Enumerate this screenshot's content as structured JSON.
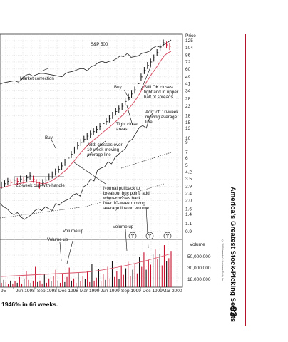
{
  "chart_labels": {
    "price_header": "Price",
    "sp500": "S&P 500",
    "market_correction": "Market correction",
    "buy_1": "Buy",
    "buy_2": "Buy",
    "still_ok": "Still OK closes\ntight and in upper\nhalf of spreads",
    "add_off": "Add: off 10-week\nmoving average\nline",
    "tight_close": "Tight close\nareas",
    "add_crosses": "Add: crosses over\n10-week moving\naverage line",
    "cup_handle": "22-week cup-with-handle",
    "pullback": "Normal pullback to\nbreakout buy point, add\nwhen crosses back\nover 10-week moving\naverage line on volume",
    "volume_up_1": "Volume up",
    "volume_up_2": "Volume up",
    "volume_up_3": "Volume up",
    "volume_header": "Volume"
  },
  "colors": {
    "price_bars": "#111111",
    "up_volume": "#c8102e",
    "down_volume": "#111111",
    "moving_average": "#d9546a",
    "grid": "#c8c8c8",
    "accent_rule": "#b5122b"
  },
  "chart_data": {
    "type": "line",
    "price_axis_ticks": [
      "125",
      "104",
      "86",
      "72",
      "60",
      "49",
      "41",
      "34",
      "28",
      "23",
      "18",
      "15",
      "13",
      "10",
      "9",
      "7",
      "6",
      "5",
      "4.2",
      "3.5",
      "2.9",
      "2.4",
      "2.0",
      "1.6",
      "1.4",
      "1.1",
      "0.9"
    ],
    "volume_axis_ticks": [
      "50,000,000",
      "30,000,000",
      "18,000,000"
    ],
    "x_ticks": [
      "95",
      "Jun 1998",
      "Sep 1998",
      "Dec 1998",
      "Mar 1999",
      "Jun 1999",
      "Sep 1999",
      "Dec 1999",
      "Mar 2000"
    ],
    "price_series": [
      3.0,
      3.1,
      3.3,
      3.2,
      3.4,
      3.3,
      3.5,
      3.4,
      3.6,
      3.8,
      3.5,
      3.2,
      3.0,
      3.2,
      3.4,
      3.7,
      3.9,
      4.2,
      4.5,
      4.9,
      5.4,
      6.0,
      6.6,
      7.4,
      8.3,
      9.0,
      9.8,
      10.6,
      11.2,
      11.9,
      12.6,
      13.6,
      14.6,
      15.4,
      16.6,
      18.2,
      20.0,
      21.4,
      23.0,
      26.0,
      29.0,
      31.5,
      35.0,
      41.0,
      49.0,
      58.0,
      66.0,
      72.0,
      80.0,
      92.0,
      104.0,
      118.0,
      112.0,
      108.0
    ],
    "moving_average_series": [
      3.0,
      3.05,
      3.1,
      3.2,
      3.25,
      3.3,
      3.35,
      3.4,
      3.45,
      3.5,
      3.55,
      3.5,
      3.4,
      3.35,
      3.35,
      3.45,
      3.6,
      3.8,
      4.0,
      4.3,
      4.6,
      5.0,
      5.5,
      6.0,
      6.7,
      7.4,
      8.1,
      8.9,
      9.6,
      10.3,
      11.0,
      11.8,
      12.7,
      13.6,
      14.5,
      15.6,
      16.8,
      18.2,
      19.6,
      21.5,
      23.5,
      26.0,
      29.0,
      33.0,
      38.0,
      44.0,
      50.0,
      57.0,
      64.0,
      72.0,
      82.0,
      92.0,
      98.0,
      102.0
    ],
    "sp500_series": [
      50,
      52,
      53,
      54,
      55,
      53,
      57,
      63,
      65,
      62,
      64,
      66,
      66,
      65,
      64,
      63,
      62,
      61,
      66,
      68,
      69,
      71,
      73,
      73,
      70,
      76,
      78,
      82,
      84,
      82,
      84,
      85,
      88,
      92,
      91,
      96,
      90,
      91,
      92,
      96,
      97,
      99,
      104,
      107,
      105,
      109,
      112,
      116
    ],
    "relative_strength_series": [
      2.3,
      2.1,
      2.0,
      1.8,
      1.7,
      1.8,
      1.6,
      1.5,
      1.6,
      1.7,
      1.9,
      2.0,
      1.9,
      2.1,
      2.0,
      1.9,
      2.3,
      2.2,
      2.4,
      2.5,
      2.6,
      2.9,
      3.0,
      2.8,
      3.6,
      3.8,
      4.4,
      4.2,
      5.6,
      5.9,
      6.1,
      7.0,
      6.6,
      7.8,
      8.5,
      9.2,
      9.9,
      12.0,
      12.8,
      15.0,
      17.5,
      18.4,
      17.2,
      23.0,
      26.0
    ],
    "volume_series": [
      6,
      10,
      7,
      4,
      9,
      5,
      8,
      6,
      14,
      5,
      12,
      22,
      10,
      6,
      9,
      28,
      7,
      9,
      5,
      18,
      6,
      12,
      8,
      15,
      24,
      9,
      6,
      19,
      7,
      14,
      27,
      9,
      12,
      6,
      20,
      8,
      15,
      11,
      22,
      7,
      32,
      9,
      13,
      25,
      8,
      18,
      10,
      28,
      12,
      36,
      14,
      22,
      11,
      30,
      17,
      26,
      35,
      15,
      24,
      32,
      19,
      42,
      28,
      48,
      24,
      38,
      31,
      45,
      52,
      39,
      46,
      30,
      58,
      36,
      40,
      50
    ]
  },
  "caption": "1946% in 66 weeks.",
  "spine_title": "America’s Greatest Stock-Picking Secrets",
  "page_number": "93",
  "copyright": "© 2000 Investor's Business Daily, Inc."
}
